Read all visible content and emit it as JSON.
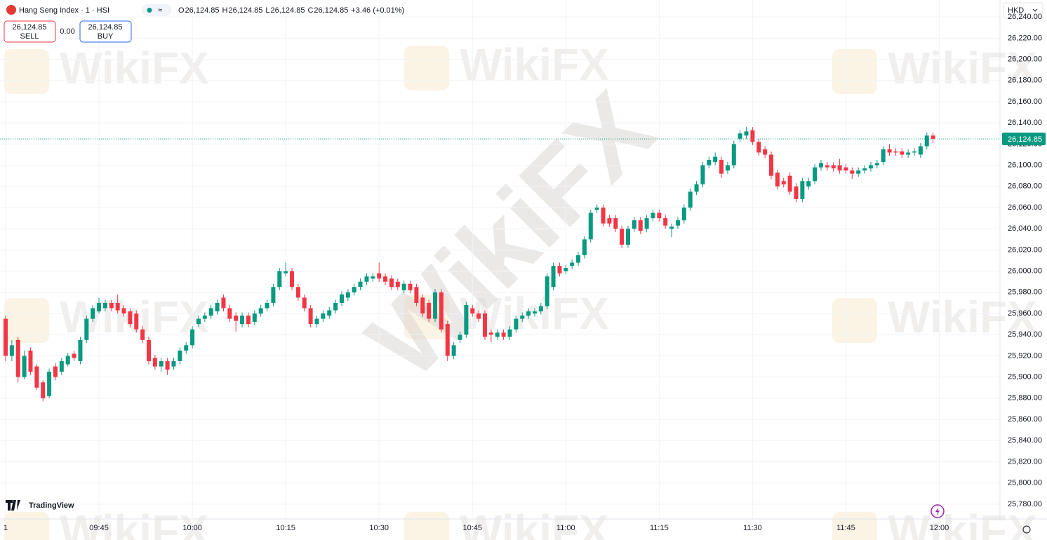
{
  "header": {
    "symbol": "Hang Seng Index · 1 · HSI",
    "ohlc": [
      {
        "label": "O",
        "value": "26,124.85"
      },
      {
        "label": "H",
        "value": "26,124.85"
      },
      {
        "label": "L",
        "value": "26,124.85"
      },
      {
        "label": "C",
        "value": "26,124.85"
      }
    ],
    "change": "+3.46 (+0.01%)",
    "sell_price": "26,124.85",
    "sell_label": "SELL",
    "spread": "0.00",
    "buy_price": "26,124.85",
    "buy_label": "BUY",
    "currency": "HKD",
    "brand": "TradingView",
    "watermark": "WikiFX"
  },
  "chart_data": {
    "type": "candlestick",
    "up_color": "#089981",
    "down_color": "#f23645",
    "last_price": 26124.85,
    "last_price_label": "26,124.85",
    "ylim": [
      25766,
      26256
    ],
    "yticks": [
      {
        "value": 25780,
        "label": "25,780.00"
      },
      {
        "value": 25800,
        "label": "25,800.00"
      },
      {
        "value": 25820,
        "label": "25,820.00"
      },
      {
        "value": 25840,
        "label": "25,840.00"
      },
      {
        "value": 25860,
        "label": "25,860.00"
      },
      {
        "value": 25880,
        "label": "25,880.00"
      },
      {
        "value": 25900,
        "label": "25,900.00"
      },
      {
        "value": 25920,
        "label": "25,920.00"
      },
      {
        "value": 25940,
        "label": "25,940.00"
      },
      {
        "value": 25960,
        "label": "25,960.00"
      },
      {
        "value": 25980,
        "label": "25,980.00"
      },
      {
        "value": 26000,
        "label": "26,000.00"
      },
      {
        "value": 26020,
        "label": "26,020.00"
      },
      {
        "value": 26040,
        "label": "26,040.00"
      },
      {
        "value": 26060,
        "label": "26,060.00"
      },
      {
        "value": 26080,
        "label": "26,080.00"
      },
      {
        "value": 26100,
        "label": "26,100.00"
      },
      {
        "value": 26120,
        "label": "26,120.00"
      },
      {
        "value": 26140,
        "label": "26,140.00"
      },
      {
        "value": 26160,
        "label": "26,160.00"
      },
      {
        "value": 26180,
        "label": "26,180.00"
      },
      {
        "value": 26200,
        "label": "26,200.00"
      },
      {
        "value": 26220,
        "label": "26,220.00"
      },
      {
        "value": 26240,
        "label": "26,240.00"
      }
    ],
    "xticks": [
      {
        "value": 0,
        "label": "1"
      },
      {
        "value": 15,
        "label": "09:45"
      },
      {
        "value": 30,
        "label": "10:00"
      },
      {
        "value": 45,
        "label": "10:15"
      },
      {
        "value": 60,
        "label": "10:30"
      },
      {
        "value": 75,
        "label": "10:45"
      },
      {
        "value": 90,
        "label": "11:00"
      },
      {
        "value": 105,
        "label": "11:15"
      },
      {
        "value": 120,
        "label": "11:30"
      },
      {
        "value": 135,
        "label": "11:45"
      },
      {
        "value": 150,
        "label": "12:00"
      }
    ],
    "grid": true,
    "candles": [
      [
        25955,
        25958,
        25915,
        25920
      ],
      [
        25920,
        25935,
        25915,
        25930
      ],
      [
        25935,
        25938,
        25895,
        25900
      ],
      [
        25900,
        25925,
        25898,
        25920
      ],
      [
        25925,
        25928,
        25902,
        25905
      ],
      [
        25910,
        25912,
        25888,
        25890
      ],
      [
        25895,
        25897,
        25877,
        25880
      ],
      [
        25882,
        25908,
        25880,
        25905
      ],
      [
        25910,
        25913,
        25897,
        25900
      ],
      [
        25905,
        25918,
        25902,
        25915
      ],
      [
        25912,
        25923,
        25910,
        25920
      ],
      [
        25922,
        25925,
        25915,
        25918
      ],
      [
        25915,
        25938,
        25912,
        25935
      ],
      [
        25935,
        25958,
        25932,
        25955
      ],
      [
        25955,
        25968,
        25952,
        25965
      ],
      [
        25962,
        25975,
        25960,
        25970
      ],
      [
        25965,
        25973,
        25962,
        25970
      ],
      [
        25970,
        25973,
        25962,
        25965
      ],
      [
        25970,
        25978,
        25960,
        25963
      ],
      [
        25965,
        25968,
        25957,
        25960
      ],
      [
        25962,
        25965,
        25947,
        25950
      ],
      [
        25960,
        25963,
        25942,
        25945
      ],
      [
        25945,
        25948,
        25932,
        25935
      ],
      [
        25935,
        25938,
        25912,
        25915
      ],
      [
        25918,
        25921,
        25907,
        25910
      ],
      [
        25910,
        25918,
        25905,
        25915
      ],
      [
        25915,
        25918,
        25902,
        25907
      ],
      [
        25910,
        25918,
        25907,
        25915
      ],
      [
        25915,
        25928,
        25912,
        25925
      ],
      [
        25925,
        25933,
        25922,
        25930
      ],
      [
        25930,
        25948,
        25927,
        25945
      ],
      [
        25950,
        25958,
        25947,
        25955
      ],
      [
        25955,
        25961,
        25952,
        25958
      ],
      [
        25958,
        25968,
        25955,
        25965
      ],
      [
        25962,
        25973,
        25959,
        25970
      ],
      [
        25975,
        25978,
        25962,
        25965
      ],
      [
        25965,
        25968,
        25952,
        25955
      ],
      [
        25958,
        25961,
        25943,
        25953
      ],
      [
        25950,
        25961,
        25947,
        25958
      ],
      [
        25958,
        25961,
        25947,
        25950
      ],
      [
        25952,
        25963,
        25949,
        25960
      ],
      [
        25960,
        25968,
        25957,
        25965
      ],
      [
        25965,
        25973,
        25962,
        25970
      ],
      [
        25970,
        25988,
        25967,
        25985
      ],
      [
        25985,
        26003,
        25982,
        26000
      ],
      [
        25998,
        26008,
        25995,
        26000
      ],
      [
        26000,
        26003,
        25982,
        25985
      ],
      [
        25985,
        25988,
        25972,
        25975
      ],
      [
        25975,
        25978,
        25962,
        25965
      ],
      [
        25965,
        25968,
        25947,
        25950
      ],
      [
        25950,
        25958,
        25947,
        25955
      ],
      [
        25955,
        25963,
        25952,
        25960
      ],
      [
        25958,
        25966,
        25955,
        25963
      ],
      [
        25963,
        25973,
        25960,
        25970
      ],
      [
        25970,
        25981,
        25967,
        25978
      ],
      [
        25975,
        25983,
        25972,
        25980
      ],
      [
        25980,
        25988,
        25977,
        25985
      ],
      [
        25985,
        25993,
        25982,
        25990
      ],
      [
        25990,
        25998,
        25987,
        25995
      ],
      [
        25993,
        25998,
        25990,
        25995
      ],
      [
        25998,
        26008,
        25990,
        25993
      ],
      [
        25995,
        25998,
        25987,
        25990
      ],
      [
        25993,
        25996,
        25982,
        25985
      ],
      [
        25990,
        25993,
        25982,
        25985
      ],
      [
        25982,
        25991,
        25979,
        25988
      ],
      [
        25988,
        25991,
        25979,
        25982
      ],
      [
        25985,
        25988,
        25967,
        25970
      ],
      [
        25975,
        25978,
        25957,
        25960
      ],
      [
        25970,
        25973,
        25952,
        25955
      ],
      [
        25955,
        25983,
        25952,
        25980
      ],
      [
        25980,
        25983,
        25942,
        25945
      ],
      [
        25950,
        25953,
        25915,
        25920
      ],
      [
        25920,
        25933,
        25917,
        25930
      ],
      [
        25935,
        25943,
        25932,
        25940
      ],
      [
        25940,
        25971,
        25937,
        25968
      ],
      [
        25965,
        25968,
        25957,
        25960
      ],
      [
        25960,
        25963,
        25952,
        25955
      ],
      [
        25960,
        25963,
        25935,
        25938
      ],
      [
        25942,
        25945,
        25933,
        25940
      ],
      [
        25938,
        25945,
        25935,
        25942
      ],
      [
        25942,
        25945,
        25935,
        25938
      ],
      [
        25938,
        25948,
        25935,
        25945
      ],
      [
        25945,
        25958,
        25942,
        25955
      ],
      [
        25955,
        25961,
        25952,
        25958
      ],
      [
        25958,
        25965,
        25955,
        25962
      ],
      [
        25960,
        25965,
        25957,
        25962
      ],
      [
        25962,
        25970,
        25959,
        25967
      ],
      [
        25967,
        25998,
        25964,
        25995
      ],
      [
        25985,
        26008,
        25982,
        26005
      ],
      [
        26005,
        26008,
        25995,
        25998
      ],
      [
        26000,
        26006,
        25997,
        26003
      ],
      [
        26005,
        26011,
        26002,
        26008
      ],
      [
        26008,
        26018,
        26005,
        26015
      ],
      [
        26015,
        26033,
        26012,
        26030
      ],
      [
        26030,
        26058,
        26027,
        26055
      ],
      [
        26058,
        26063,
        26055,
        26060
      ],
      [
        26060,
        26063,
        26042,
        26045
      ],
      [
        26050,
        26053,
        26042,
        26045
      ],
      [
        26050,
        26053,
        26037,
        26040
      ],
      [
        26040,
        26043,
        26022,
        26025
      ],
      [
        26025,
        26043,
        26022,
        26040
      ],
      [
        26040,
        26051,
        26037,
        26048
      ],
      [
        26048,
        26051,
        26035,
        26038
      ],
      [
        26040,
        26053,
        26037,
        26050
      ],
      [
        26050,
        26058,
        26047,
        26055
      ],
      [
        26055,
        26058,
        26047,
        26050
      ],
      [
        26050,
        26053,
        26040,
        26043
      ],
      [
        26040,
        26045,
        26032,
        26042
      ],
      [
        26043,
        26051,
        26040,
        26048
      ],
      [
        26048,
        26063,
        26045,
        26060
      ],
      [
        26060,
        26078,
        26057,
        26075
      ],
      [
        26075,
        26085,
        26072,
        26082
      ],
      [
        26082,
        26103,
        26079,
        26100
      ],
      [
        26100,
        26108,
        26097,
        26105
      ],
      [
        26103,
        26112,
        26100,
        26108
      ],
      [
        26105,
        26108,
        26088,
        26092
      ],
      [
        26095,
        26103,
        26092,
        26100
      ],
      [
        26100,
        26123,
        26097,
        26120
      ],
      [
        26125,
        26133,
        26122,
        26130
      ],
      [
        26128,
        26136,
        26125,
        26132
      ],
      [
        26133,
        26136,
        26119,
        26122
      ],
      [
        26122,
        26125,
        26109,
        26112
      ],
      [
        26115,
        26118,
        26107,
        26110
      ],
      [
        26110,
        26113,
        26087,
        26090
      ],
      [
        26093,
        26096,
        26077,
        26080
      ],
      [
        26085,
        26088,
        26079,
        26082
      ],
      [
        26090,
        26093,
        26072,
        26075
      ],
      [
        26080,
        26083,
        26065,
        26068
      ],
      [
        26068,
        26088,
        26065,
        26085
      ],
      [
        26080,
        26088,
        26077,
        26085
      ],
      [
        26085,
        26101,
        26082,
        26098
      ],
      [
        26098,
        26105,
        26095,
        26102
      ],
      [
        26100,
        26103,
        26095,
        26098
      ],
      [
        26100,
        26103,
        26094,
        26097
      ],
      [
        26100,
        26106,
        26092,
        26095
      ],
      [
        26098,
        26101,
        26092,
        26095
      ],
      [
        26095,
        26098,
        26087,
        26092
      ],
      [
        26092,
        26098,
        26089,
        26095
      ],
      [
        26095,
        26100,
        26092,
        26097
      ],
      [
        26097,
        26103,
        26094,
        26100
      ],
      [
        26100,
        26105,
        26097,
        26102
      ],
      [
        26103,
        26118,
        26100,
        26115
      ],
      [
        26115,
        26120,
        26109,
        26112
      ],
      [
        26113,
        26116,
        26109,
        26112
      ],
      [
        26113,
        26116,
        26107,
        26110
      ],
      [
        26110,
        26115,
        26107,
        26112
      ],
      [
        26112,
        26116,
        26109,
        26113
      ],
      [
        26110,
        26121,
        26107,
        26118
      ],
      [
        26118,
        26131,
        26115,
        26128
      ],
      [
        26128,
        26131,
        26121,
        26124.85
      ]
    ]
  }
}
